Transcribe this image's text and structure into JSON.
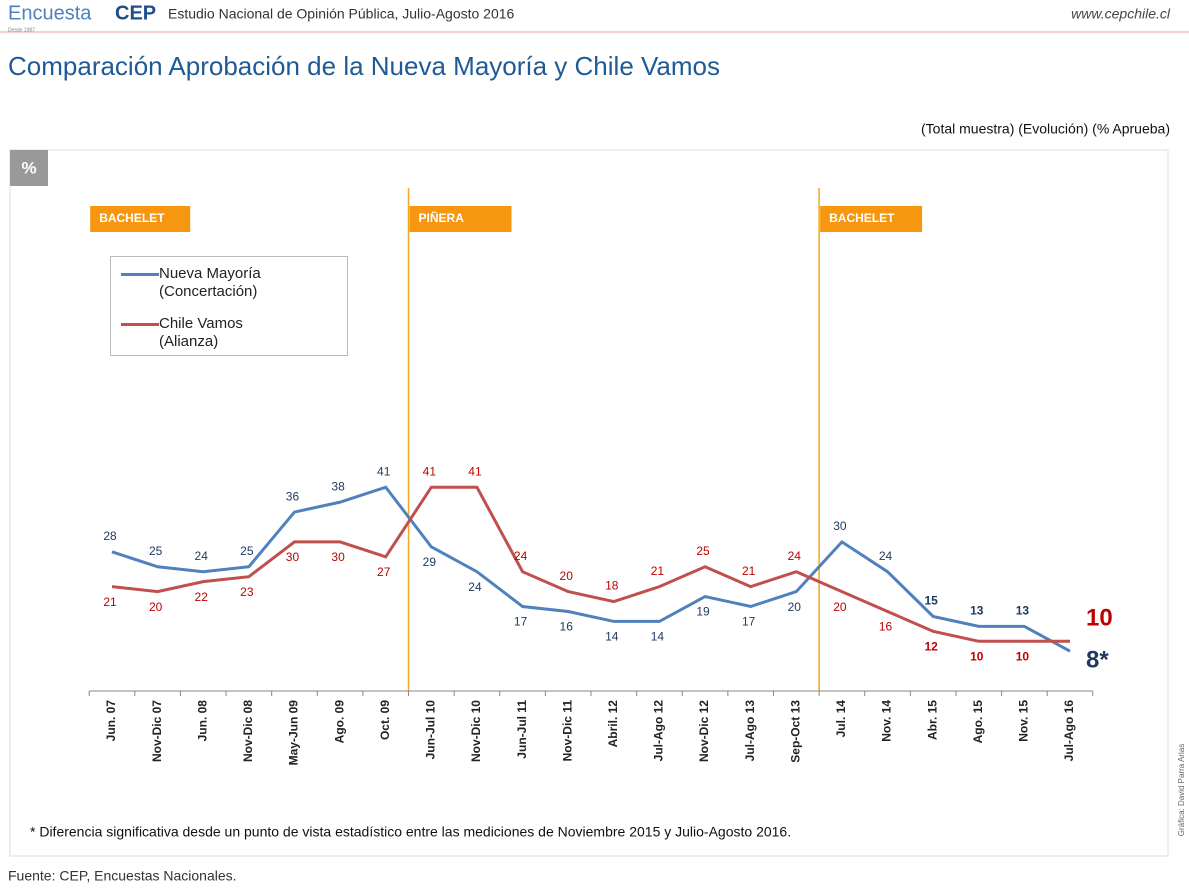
{
  "header": {
    "logo_light": "Encuesta",
    "logo_bold": "CEP",
    "logo_small": "Desde 1987",
    "subtitle": "Estudio Nacional de Opinión Pública, Julio-Agosto 2016",
    "website": "www.cepchile.cl"
  },
  "chart_data": {
    "type": "line",
    "title": "Comparación Aprobación de la Nueva Mayoría y Chile Vamos",
    "subtitle": "(Total muestra) (Evolución) (% Aprueba)",
    "unit_badge": "%",
    "categories": [
      "Jun. 07",
      "Nov-Dic 07",
      "Jun. 08",
      "Nov-Dic 08",
      "May-Jun 09",
      "Ago. 09",
      "Oct. 09",
      "Jun-Jul 10",
      "Nov-Dic 10",
      "Jun-Jul 11",
      "Nov-Dic 11",
      "Abril. 12",
      "Jul-Ago 12",
      "Nov-Dic 12",
      "Jul-Ago 13",
      "Sep-Oct 13",
      "Jul. 14",
      "Nov. 14",
      "Abr. 15",
      "Ago. 15",
      "Nov. 15",
      "Jul-Ago 16"
    ],
    "series": [
      {
        "name": "Nueva Mayoría (Concertación)",
        "color": "#4f81bd",
        "label_color": "#1f3a60",
        "values": [
          28,
          25,
          24,
          25,
          36,
          38,
          41,
          29,
          24,
          17,
          16,
          14,
          14,
          19,
          17,
          20,
          30,
          24,
          15,
          13,
          13,
          8
        ],
        "value_labels": [
          "28",
          "25",
          "24",
          "25",
          "36",
          "38",
          "41",
          "29",
          "24",
          "17",
          "16",
          "14",
          "14",
          "19",
          "17",
          "20",
          "30",
          "24",
          "15",
          "13",
          "13",
          "8*"
        ]
      },
      {
        "name": "Chile Vamos (Alianza)",
        "color": "#c0504d",
        "label_color": "#c00000",
        "values": [
          21,
          20,
          22,
          23,
          30,
          30,
          27,
          41,
          41,
          24,
          20,
          18,
          21,
          25,
          21,
          24,
          20,
          16,
          12,
          10,
          10,
          10
        ]
      }
    ],
    "periods": [
      {
        "label": "BACHELET",
        "from": "Jun. 07"
      },
      {
        "label": "PIÑERA",
        "from": "Jun-Jul 10"
      },
      {
        "label": "BACHELET",
        "from": "Jul. 14"
      }
    ],
    "ylim": [
      0,
      100
    ],
    "footnote": "* Diferencia significativa desde un punto de vista estadístico entre las mediciones de Noviembre 2015 y Julio-Agosto 2016.",
    "source": "Fuente: CEP, Encuestas Nacionales.",
    "credit": "Gráfica: David Parra Arias"
  }
}
